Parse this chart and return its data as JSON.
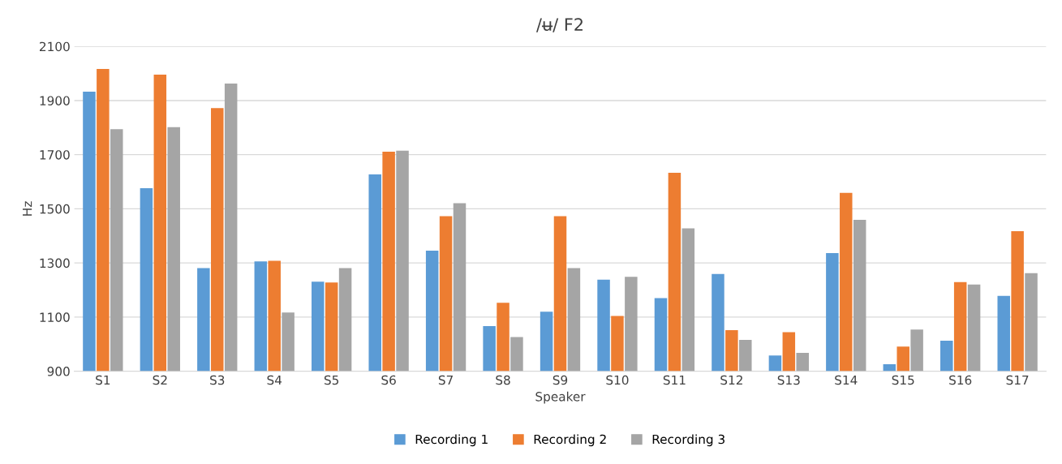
{
  "chart_data": {
    "type": "bar",
    "title": "/ʉ/ F2",
    "xlabel": "Speaker",
    "ylabel": "Hz",
    "categories": [
      "S1",
      "S2",
      "S3",
      "S4",
      "S5",
      "S6",
      "S7",
      "S8",
      "S9",
      "S10",
      "S11",
      "S12",
      "S13",
      "S14",
      "S15",
      "S16",
      "S17"
    ],
    "series": [
      {
        "name": "Recording 1",
        "color": "#5b9bd5",
        "values": [
          1933,
          1576,
          1281,
          1306,
          1231,
          1627,
          1345,
          1067,
          1120,
          1238,
          1170,
          1259,
          958,
          1336,
          926,
          1013,
          1178
        ]
      },
      {
        "name": "Recording 2",
        "color": "#ed7d31",
        "values": [
          2017,
          1996,
          1872,
          1308,
          1228,
          1711,
          1473,
          1153,
          1473,
          1104,
          1633,
          1052,
          1044,
          1559,
          991,
          1229,
          1417
        ]
      },
      {
        "name": "Recording 3",
        "color": "#a5a5a5",
        "values": [
          1794,
          1802,
          1963,
          1117,
          1281,
          1715,
          1521,
          1026,
          1281,
          1249,
          1428,
          1016,
          968,
          1459,
          1054,
          1220,
          1262
        ]
      }
    ],
    "ylim": [
      900,
      2100
    ],
    "yticks": [
      900,
      1100,
      1300,
      1500,
      1700,
      1900,
      2100
    ],
    "grid": "y",
    "legend": "bottom"
  }
}
